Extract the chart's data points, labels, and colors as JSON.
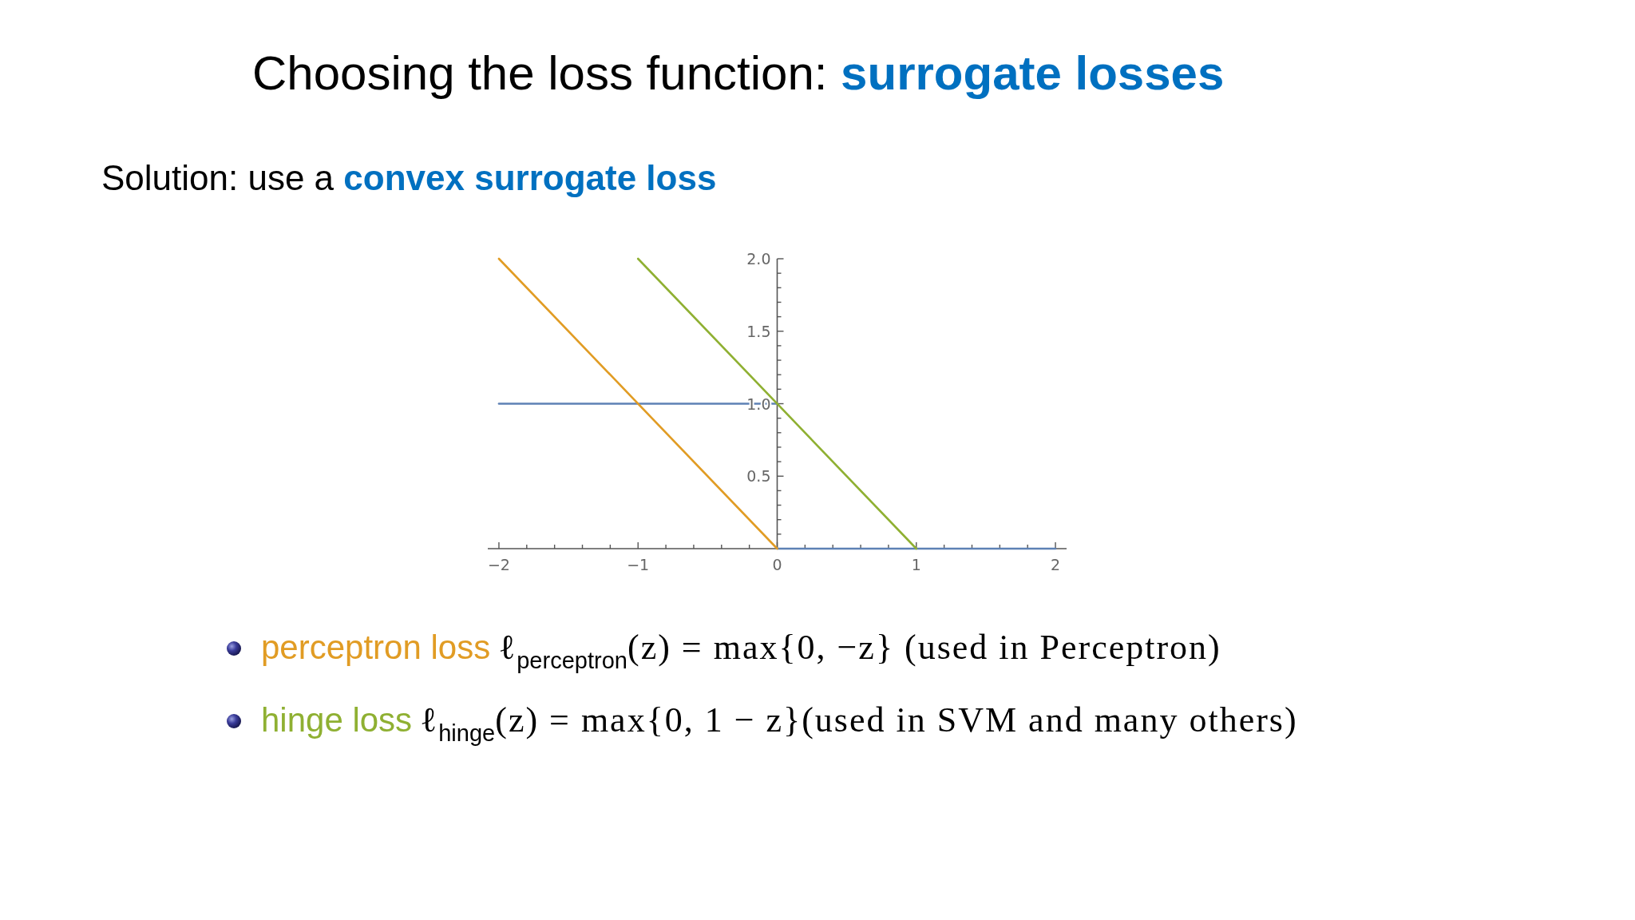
{
  "chart_data": {
    "type": "line",
    "title": "Choosing the loss function: surrogate losses",
    "subtitle": "Solution: use a convex surrogate loss",
    "xlim": [
      -2.08,
      2.08
    ],
    "ylim": [
      0,
      2
    ],
    "xticks": [
      -2,
      {
        "value": -1.8,
        "label": null
      },
      {
        "value": -1.6,
        "label": null
      },
      {
        "value": -1.4,
        "label": null
      },
      {
        "value": -1.2,
        "label": null
      },
      -1,
      {
        "value": -0.8,
        "label": null
      },
      {
        "value": -0.6,
        "label": null
      },
      {
        "value": -0.4,
        "label": null
      },
      {
        "value": -0.2,
        "label": null
      },
      0,
      {
        "value": 0.2,
        "label": null
      },
      {
        "value": 0.4,
        "label": null
      },
      {
        "value": 0.6,
        "label": null
      },
      {
        "value": 0.8,
        "label": null
      },
      1,
      {
        "value": 1.2,
        "label": null
      },
      {
        "value": 1.4,
        "label": null
      },
      {
        "value": 1.6,
        "label": null
      },
      {
        "value": 1.8,
        "label": null
      },
      2
    ],
    "yticks": [
      {
        "value": 0.1,
        "label": null
      },
      {
        "value": 0.2,
        "label": null
      },
      {
        "value": 0.3,
        "label": null
      },
      {
        "value": 0.4,
        "label": null
      },
      0.5,
      {
        "value": 0.6,
        "label": null
      },
      {
        "value": 0.7,
        "label": null
      },
      {
        "value": 0.8,
        "label": null
      },
      {
        "value": 0.9,
        "label": null
      },
      {
        "value": 1,
        "label": "1.0"
      },
      {
        "value": 1.1,
        "label": null
      },
      {
        "value": 1.2,
        "label": null
      },
      {
        "value": 1.3,
        "label": null
      },
      {
        "value": 1.4,
        "label": null
      },
      1.5,
      {
        "value": 1.6,
        "label": null
      },
      {
        "value": 1.7,
        "label": null
      },
      {
        "value": 1.8,
        "label": null
      },
      {
        "value": 1.9,
        "label": null
      },
      {
        "value": 2,
        "label": "2.0"
      }
    ],
    "series": [
      {
        "color": "#5e81b5",
        "x": [
          -2,
          0
        ],
        "values": [
          1,
          1
        ]
      },
      {
        "color": "#5e81b5",
        "x": [
          0,
          2
        ],
        "values": [
          0,
          0
        ]
      },
      {
        "name": "perceptron loss",
        "color": "#e19c24",
        "x": [
          -2,
          0
        ],
        "values": [
          2,
          0
        ]
      },
      {
        "name": "hinge loss",
        "color": "#8fb032",
        "x": [
          -1,
          1
        ],
        "values": [
          2,
          0
        ]
      }
    ],
    "legend": "bottom",
    "annotations": [
      "ℓ$_{perceptron}$(z) = max{0, −z} (used in Perceptron)",
      "ℓ$_{hinge}$(z) = max{0, 1 − z}(used in SVM and many others)"
    ]
  }
}
